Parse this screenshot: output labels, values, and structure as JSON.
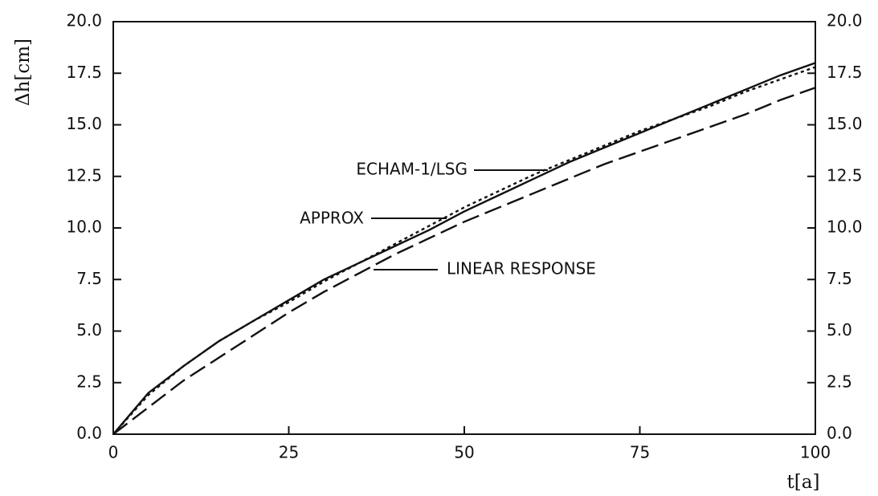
{
  "chart_data": {
    "type": "line",
    "y_label": "Δh[cm]",
    "x_label": "t[a]",
    "x": [
      0,
      5,
      10,
      15,
      20,
      25,
      30,
      35,
      40,
      45,
      50,
      55,
      60,
      65,
      70,
      75,
      80,
      85,
      90,
      95,
      100
    ],
    "series": [
      {
        "name": "ECHAM-1/LSG",
        "color": "#111111",
        "line_style": "solid",
        "values": [
          0,
          2.0,
          3.3,
          4.5,
          5.5,
          6.5,
          7.5,
          8.3,
          9.1,
          9.9,
          10.8,
          11.6,
          12.4,
          13.2,
          13.9,
          14.6,
          15.3,
          16.0,
          16.7,
          17.4,
          18.0
        ]
      },
      {
        "name": "APPROX",
        "color": "#111111",
        "line_style": "dotted",
        "values": [
          0,
          1.9,
          3.3,
          4.5,
          5.5,
          6.4,
          7.4,
          8.3,
          9.2,
          10.1,
          11.0,
          11.8,
          12.6,
          13.3,
          14.0,
          14.7,
          15.3,
          15.9,
          16.6,
          17.2,
          17.8
        ]
      },
      {
        "name": "LINEAR RESPONSE",
        "color": "#111111",
        "line_style": "dashed",
        "values": [
          0,
          1.3,
          2.6,
          3.7,
          4.8,
          5.9,
          6.9,
          7.8,
          8.7,
          9.5,
          10.3,
          11.0,
          11.7,
          12.4,
          13.1,
          13.7,
          14.3,
          14.9,
          15.5,
          16.2,
          16.8
        ]
      }
    ],
    "xlim": [
      0,
      100
    ],
    "xticks": [
      0,
      25,
      50,
      75,
      100
    ],
    "ylim": [
      0,
      20
    ],
    "yticks": [
      {
        "value": 0,
        "label": "0.0"
      },
      {
        "value": 2.5,
        "label": "2.5"
      },
      {
        "value": 5,
        "label": "5.0"
      },
      {
        "value": 7.5,
        "label": "7.5"
      },
      {
        "value": 10,
        "label": "10.0"
      },
      {
        "value": 12.5,
        "label": "12.5"
      },
      {
        "value": 15,
        "label": "15.0"
      },
      {
        "value": 17.5,
        "label": "17.5"
      },
      {
        "value": 20,
        "label": "20.0"
      }
    ],
    "grid": false
  }
}
